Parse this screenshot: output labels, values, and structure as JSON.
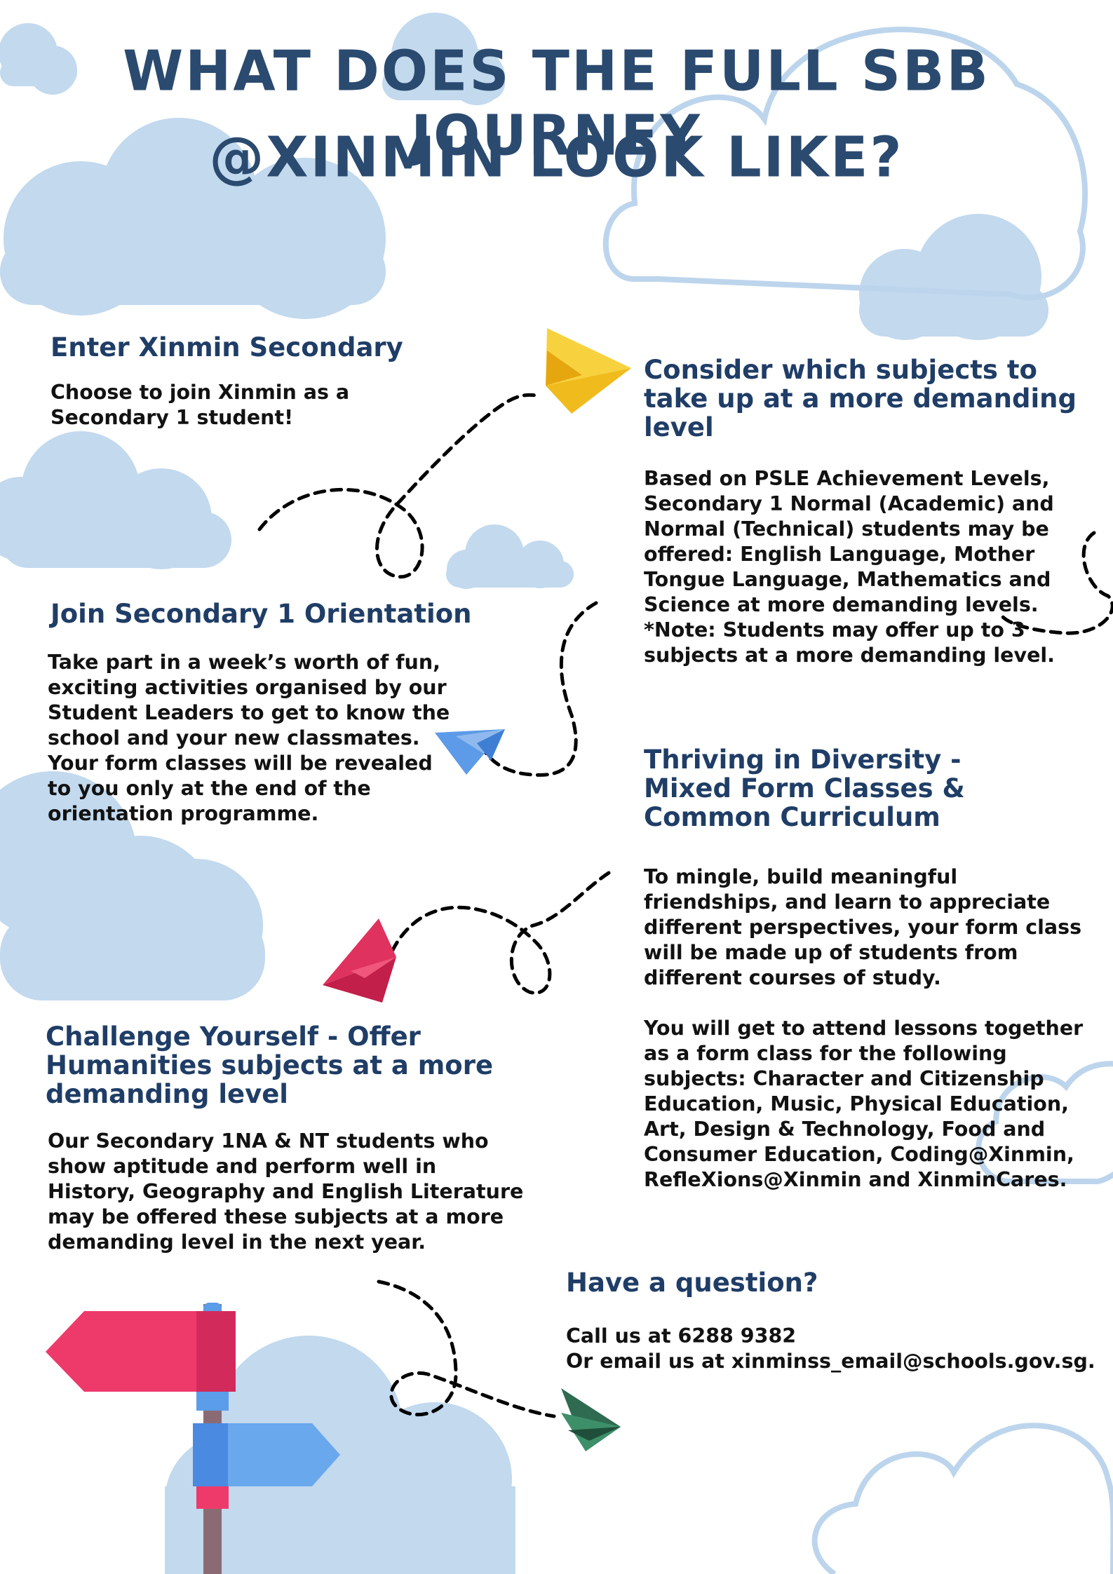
{
  "title": {
    "line1": "WHAT DOES THE FULL SBB JOURNEY",
    "line2": "@XINMIN LOOK LIKE?"
  },
  "sections": {
    "enter": {
      "heading": "Enter Xinmin Secondary",
      "body": "Choose to join Xinmin as a\nSecondary 1 student!"
    },
    "consider": {
      "heading": "Consider which subjects to\ntake up at a more demanding\nlevel",
      "body": "Based on PSLE Achievement Levels,\nSecondary 1 Normal (Academic) and\nNormal (Technical) students may be\noffered: English Language, Mother\nTongue Language, Mathematics and\nScience at more demanding levels.\n*Note: Students may offer up to 3\nsubjects at a more demanding level."
    },
    "orientation": {
      "heading": "Join Secondary 1 Orientation",
      "body": "Take part in a week’s worth of fun,\nexciting activities organised by our\nStudent Leaders to get to know the\nschool and your new classmates.\nYour form classes will be revealed\nto you only at the end of the\norientation programme."
    },
    "diversity": {
      "heading": "Thriving in Diversity -\nMixed Form Classes &\nCommon Curriculum",
      "body1": "To mingle, build meaningful\nfriendships, and learn to appreciate\ndifferent perspectives, your form class\nwill be made up of students from\ndifferent courses of study.",
      "body2": "You will get to attend lessons together\nas a form class for the following\nsubjects: Character and Citizenship\nEducation, Music, Physical Education,\nArt, Design & Technology, Food and\nConsumer Education, Coding@Xinmin,\nRefleXions@Xinmin and XinminCares."
    },
    "challenge": {
      "heading": "Challenge Yourself - Offer\nHumanities subjects at a more\ndemanding level",
      "body": "Our Secondary 1NA & NT students who\nshow aptitude and perform well in\nHistory, Geography and English Literature\nmay be offered these subjects at a more\ndemanding level in the next year."
    },
    "question": {
      "heading": "Have a question?",
      "body": "Call us at 6288 9382\nOr email us at xinminss_email@schools.gov.sg."
    }
  },
  "colors": {
    "heading": "#1f3d66",
    "title": "#2b4a6f",
    "cloud_fill": "#c2d9ee",
    "cloud_outline": "#bdd5ec",
    "plane_yellow": "#f7d23e",
    "plane_blue": "#5d9be8",
    "plane_pink": "#e0325e",
    "plane_green": "#2e6b50",
    "sign_red": "#ee3a6b",
    "sign_blue": "#5b9de9"
  },
  "icons": [
    "cloud-icon",
    "paper-plane-icon",
    "signpost-icon",
    "dashed-flight-path"
  ]
}
